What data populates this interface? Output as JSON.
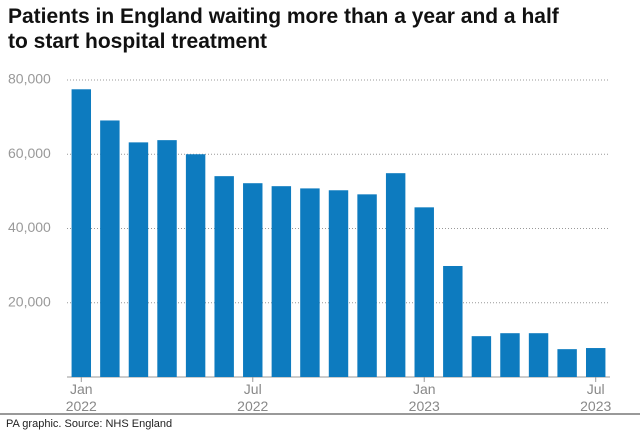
{
  "chart_data": {
    "type": "bar",
    "title": "Patients in England waiting more than a year and a half to start hospital treatment",
    "categories": [
      "Jan 2022",
      null,
      null,
      null,
      null,
      null,
      "Jul 2022",
      null,
      null,
      null,
      null,
      null,
      "Jan 2023",
      null,
      null,
      null,
      null,
      null,
      "Jul 2023"
    ],
    "values": [
      77500,
      69100,
      63200,
      63800,
      60000,
      54100,
      52200,
      51400,
      50800,
      50300,
      49200,
      54900,
      45700,
      29900,
      11000,
      11800,
      11800,
      7500,
      7800
    ],
    "color": "#0d7bbf",
    "ylim": [
      0,
      80000
    ],
    "yticks": [
      {
        "value": 20000,
        "label": "20,000"
      },
      {
        "value": 40000,
        "label": "40,000"
      },
      {
        "value": 60000,
        "label": "60,000"
      },
      {
        "value": 80000,
        "label": "80,000"
      }
    ],
    "grid": true,
    "source": "PA graphic. Source: NHS England"
  }
}
